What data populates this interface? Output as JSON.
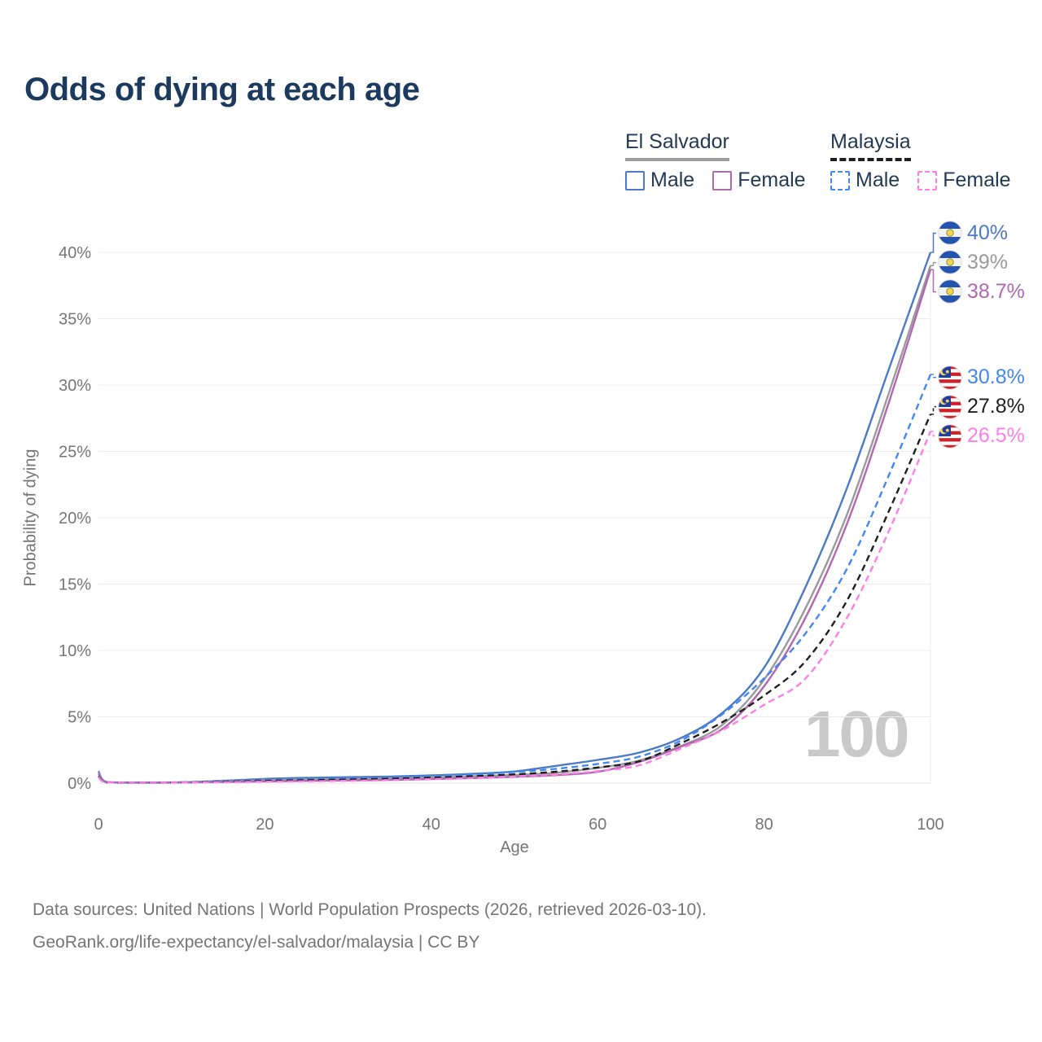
{
  "title": "Odds of dying at each age",
  "legend": {
    "groups": [
      {
        "country": "El Salvador",
        "line_style": "solid",
        "line_color": "#9e9e9e",
        "items": [
          {
            "label": "Male",
            "color": "#4a79c5"
          },
          {
            "label": "Female",
            "color": "#b168b1"
          }
        ]
      },
      {
        "country": "Malaysia",
        "line_style": "dashed",
        "line_color": "#1f1f1f",
        "items": [
          {
            "label": "Male",
            "color": "#4287f5"
          },
          {
            "label": "Female",
            "color": "#ff7de9"
          }
        ]
      }
    ]
  },
  "chart_data": {
    "type": "line",
    "title": "Odds of dying at each age",
    "xlabel": "Age",
    "ylabel": "Probability of dying",
    "xlim": [
      0,
      100
    ],
    "ylim": [
      0,
      40
    ],
    "y_unit": "%",
    "xticks": [
      0,
      20,
      40,
      60,
      80,
      100
    ],
    "yticks": [
      0,
      5,
      10,
      15,
      20,
      25,
      30,
      35,
      40
    ],
    "grid": "horizontal",
    "legend_position": "top-right",
    "watermark": "100",
    "x": [
      0,
      1,
      5,
      10,
      15,
      20,
      25,
      30,
      35,
      40,
      45,
      50,
      55,
      60,
      65,
      70,
      75,
      80,
      85,
      90,
      95,
      100
    ],
    "series": [
      {
        "name": "El Salvador Male",
        "country": "El Salvador",
        "sex": "Male",
        "flag": "sv",
        "color": "#4a79c5",
        "dashed": false,
        "end_label": "40%",
        "values": [
          0.9,
          0.08,
          0.05,
          0.06,
          0.18,
          0.32,
          0.4,
          0.45,
          0.5,
          0.58,
          0.7,
          0.88,
          1.3,
          1.75,
          2.3,
          3.4,
          5.3,
          8.7,
          14.8,
          22.3,
          31.2,
          40.0
        ]
      },
      {
        "name": "El Salvador Both sexes",
        "country": "El Salvador",
        "sex": "Both",
        "flag": "sv",
        "color": "#9a9a9a",
        "dashed": false,
        "end_label": "39%",
        "values": [
          0.8,
          0.07,
          0.04,
          0.05,
          0.12,
          0.22,
          0.28,
          0.32,
          0.36,
          0.43,
          0.52,
          0.62,
          0.78,
          1.15,
          1.7,
          2.8,
          4.4,
          7.8,
          13.2,
          20.3,
          29.4,
          39.0
        ]
      },
      {
        "name": "El Salvador Female",
        "country": "El Salvador",
        "sex": "Female",
        "flag": "sv",
        "color": "#b168b1",
        "dashed": false,
        "end_label": "38.7%",
        "values": [
          0.7,
          0.06,
          0.035,
          0.045,
          0.09,
          0.13,
          0.17,
          0.2,
          0.24,
          0.3,
          0.38,
          0.47,
          0.6,
          0.85,
          1.6,
          2.75,
          4.1,
          7.3,
          12.5,
          19.6,
          28.7,
          38.7
        ]
      },
      {
        "name": "Malaysia Male",
        "country": "Malaysia",
        "sex": "Male",
        "flag": "my",
        "color": "#4287f5",
        "dashed": true,
        "end_label": "30.8%",
        "values": [
          0.55,
          0.05,
          0.04,
          0.06,
          0.13,
          0.22,
          0.28,
          0.35,
          0.42,
          0.52,
          0.66,
          0.84,
          1.08,
          1.45,
          2.0,
          3.2,
          5.2,
          7.9,
          11.3,
          16.2,
          23.2,
          30.8
        ]
      },
      {
        "name": "Malaysia Both sexes",
        "country": "Malaysia",
        "sex": "Both",
        "flag": "my",
        "color": "#1f1f1f",
        "dashed": true,
        "end_label": "27.8%",
        "values": [
          0.5,
          0.045,
          0.035,
          0.05,
          0.1,
          0.17,
          0.22,
          0.27,
          0.33,
          0.41,
          0.52,
          0.66,
          0.86,
          1.18,
          1.65,
          3.0,
          4.6,
          6.6,
          9.2,
          13.8,
          20.5,
          27.8
        ]
      },
      {
        "name": "Malaysia Female",
        "country": "Malaysia",
        "sex": "Female",
        "flag": "my",
        "color": "#ff7de9",
        "dashed": true,
        "end_label": "26.5%",
        "values": [
          0.45,
          0.04,
          0.03,
          0.04,
          0.07,
          0.11,
          0.14,
          0.18,
          0.23,
          0.3,
          0.39,
          0.5,
          0.65,
          0.9,
          1.35,
          2.6,
          4.0,
          5.9,
          7.9,
          12.5,
          19.0,
          26.5
        ]
      }
    ]
  },
  "footer": {
    "line1": "Data sources: United Nations | World Population Prospects (2026, retrieved 2026-03-10).",
    "line2": "GeoRank.org/life-expectancy/el-salvador/malaysia | CC BY"
  }
}
